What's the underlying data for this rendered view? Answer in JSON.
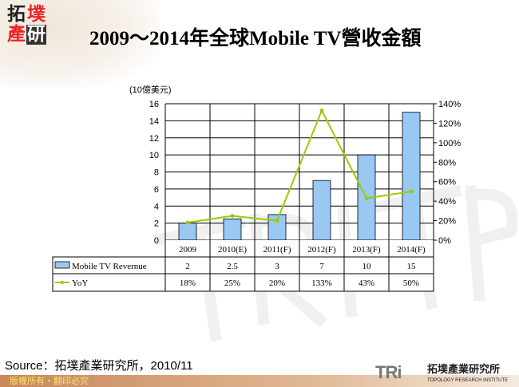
{
  "logo": {
    "chars": [
      "拓",
      "墣",
      "產",
      "研"
    ]
  },
  "title": "2009～2014年全球Mobile TV營收金額",
  "source": "Source：拓墣產業研究所，2010/11",
  "footer": "版權所有・翻印必究",
  "brand": {
    "mark": "TRi",
    "name_cn": "拓墣產業研究所",
    "name_en": "TOPOLOGY RESEARCH INSTITUTE"
  },
  "colors": {
    "bar": "#99c8f2",
    "line": "#99cc00"
  },
  "chart_data": {
    "type": "bar+line",
    "ylabel": "(10億美元)",
    "ylim": [
      0,
      16
    ],
    "yticks": [
      "0",
      "2",
      "4",
      "6",
      "8",
      "10",
      "12",
      "14",
      "16"
    ],
    "y2lim": [
      0,
      140
    ],
    "y2ticks": [
      "0%",
      "20%",
      "40%",
      "60%",
      "80%",
      "100%",
      "120%",
      "140%"
    ],
    "categories": [
      "2009",
      "2010(E)",
      "2011(F)",
      "2012(F)",
      "2013(F)",
      "2014(F)"
    ],
    "grid": true,
    "legend": "data-table",
    "series": [
      {
        "name": "Mobile TV  Revernue",
        "type": "bar",
        "axis": "left",
        "values": [
          2,
          2.5,
          3,
          7,
          10,
          15
        ],
        "labels": [
          "2",
          "2.5",
          "3",
          "7",
          "10",
          "15"
        ]
      },
      {
        "name": "YoY",
        "type": "line",
        "axis": "right",
        "values": [
          18,
          25,
          20,
          133,
          43,
          50
        ],
        "labels": [
          "18%",
          "25%",
          "20%",
          "133%",
          "43%",
          "50%"
        ]
      }
    ]
  }
}
